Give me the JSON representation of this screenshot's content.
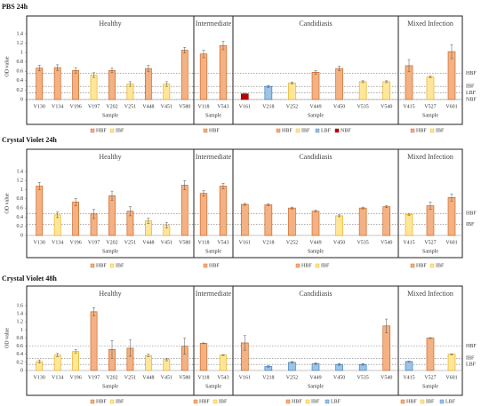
{
  "chart_data": [
    {
      "type": "bar",
      "title": "PBS 24h",
      "ylabel": "OD value",
      "xlabel": "Sample",
      "ylim": [
        0,
        1.4
      ],
      "yticks": [
        0,
        0.2,
        0.4,
        0.6,
        0.8,
        1,
        1.2,
        1.4
      ],
      "thresholds": [
        {
          "label": "HBF",
          "value": 0.56
        },
        {
          "label": "IBF",
          "value": 0.28
        },
        {
          "label": "LBF",
          "value": 0.14
        },
        {
          "label": "NBF",
          "value": 0
        }
      ],
      "groups": [
        {
          "name": "Healthy",
          "categories": [
            "V130",
            "V134",
            "V196",
            "V197",
            "V202",
            "V251",
            "V448",
            "V451",
            "V580"
          ],
          "series": [
            {
              "name": "HBF",
              "color": "#f4b183",
              "edge_color": "#c55a11",
              "values": [
                0.67,
                0.68,
                0.62,
                null,
                0.62,
                null,
                0.66,
                null,
                1.05
              ],
              "errors": [
                0.06,
                0.06,
                0.06,
                null,
                0.05,
                null,
                0.07,
                null,
                0.06
              ]
            },
            {
              "name": "IBF",
              "color": "#ffe699",
              "edge_color": "#e6a800",
              "values": [
                null,
                null,
                null,
                0.52,
                null,
                0.33,
                null,
                0.33,
                null
              ],
              "errors": [
                null,
                null,
                null,
                0.05,
                null,
                0.05,
                null,
                0.05,
                null
              ]
            }
          ]
        },
        {
          "name": "Intermediate",
          "categories": [
            "V118",
            "V543"
          ],
          "series": [
            {
              "name": "HBF",
              "color": "#f4b183",
              "edge_color": "#c55a11",
              "values": [
                0.97,
                1.15
              ],
              "errors": [
                0.08,
                0.09
              ]
            }
          ]
        },
        {
          "name": "Candidiasis",
          "categories": [
            "V161",
            "V218",
            "V252",
            "V449",
            "V450",
            "V535",
            "V540"
          ],
          "series": [
            {
              "name": "HBF",
              "color": "#f4b183",
              "edge_color": "#c55a11",
              "values": [
                null,
                null,
                null,
                0.58,
                0.66,
                null,
                null
              ],
              "errors": [
                null,
                null,
                null,
                0.04,
                0.05,
                null,
                null
              ]
            },
            {
              "name": "IBF",
              "color": "#ffe699",
              "edge_color": "#e6a800",
              "values": [
                null,
                null,
                0.35,
                null,
                null,
                0.38,
                0.38
              ],
              "errors": [
                null,
                null,
                0.02,
                null,
                null,
                0.02,
                0.02
              ]
            },
            {
              "name": "LBF",
              "color": "#9dc3e6",
              "edge_color": "#2e75b6",
              "values": [
                null,
                0.28,
                null,
                null,
                null,
                null,
                null
              ],
              "errors": [
                null,
                0.02,
                null,
                null,
                null,
                null,
                null
              ]
            },
            {
              "name": "NBF",
              "color": "#c00000",
              "edge_color": "#7f0000",
              "values": [
                0.12,
                null,
                null,
                null,
                null,
                null,
                null
              ],
              "errors": [
                0.01,
                null,
                null,
                null,
                null,
                null,
                null
              ]
            }
          ]
        },
        {
          "name": "Mixed Infection",
          "categories": [
            "V415",
            "V527",
            "V601"
          ],
          "series": [
            {
              "name": "HBF",
              "color": "#f4b183",
              "edge_color": "#c55a11",
              "values": [
                0.72,
                null,
                1.02
              ],
              "errors": [
                0.13,
                null,
                0.15
              ]
            },
            {
              "name": "IBF",
              "color": "#ffe699",
              "edge_color": "#e6a800",
              "values": [
                null,
                0.48,
                null
              ],
              "errors": [
                null,
                0.02,
                null
              ]
            }
          ]
        }
      ]
    },
    {
      "type": "bar",
      "title": "Crystal Violet 24h",
      "ylabel": "OD value",
      "xlabel": "Sample",
      "ylim": [
        0,
        1.4
      ],
      "yticks": [
        0,
        0.2,
        0.4,
        0.6,
        0.8,
        1,
        1.2,
        1.4
      ],
      "thresholds": [
        {
          "label": "HBF",
          "value": 0.48
        },
        {
          "label": "IBF",
          "value": 0.24
        }
      ],
      "groups": [
        {
          "name": "Healthy",
          "categories": [
            "V130",
            "V134",
            "V196",
            "V197",
            "V202",
            "V251",
            "V448",
            "V451",
            "V580"
          ],
          "series": [
            {
              "name": "HBF",
              "color": "#f4b183",
              "edge_color": "#c55a11",
              "values": [
                1.08,
                null,
                0.73,
                0.47,
                0.87,
                0.53,
                null,
                null,
                1.1
              ],
              "errors": [
                0.08,
                null,
                0.08,
                0.1,
                0.1,
                0.1,
                null,
                null,
                0.1
              ]
            },
            {
              "name": "IBF",
              "color": "#ffe699",
              "edge_color": "#e6a800",
              "values": [
                null,
                0.45,
                null,
                null,
                null,
                null,
                0.32,
                0.22,
                null
              ],
              "errors": [
                null,
                0.06,
                null,
                null,
                null,
                null,
                0.06,
                0.06,
                null
              ]
            }
          ]
        },
        {
          "name": "Intermediate",
          "categories": [
            "V118",
            "V543"
          ],
          "series": [
            {
              "name": "HBF",
              "color": "#f4b183",
              "edge_color": "#c55a11",
              "values": [
                0.92,
                1.08
              ],
              "errors": [
                0.06,
                0.06
              ]
            }
          ]
        },
        {
          "name": "Candidiasis",
          "categories": [
            "V161",
            "V218",
            "V252",
            "V449",
            "V450",
            "V535",
            "V540"
          ],
          "series": [
            {
              "name": "HBF",
              "color": "#f4b183",
              "edge_color": "#c55a11",
              "values": [
                0.68,
                0.67,
                0.6,
                0.53,
                null,
                0.6,
                0.63
              ],
              "errors": [
                0.02,
                0.02,
                0.02,
                0.02,
                null,
                0.02,
                0.02
              ]
            },
            {
              "name": "IBF",
              "color": "#ffe699",
              "edge_color": "#e6a800",
              "values": [
                null,
                null,
                null,
                null,
                0.43,
                null,
                null
              ],
              "errors": [
                null,
                null,
                null,
                null,
                0.02,
                null,
                null
              ]
            }
          ]
        },
        {
          "name": "Mixed Infection",
          "categories": [
            "V415",
            "V527",
            "V601"
          ],
          "series": [
            {
              "name": "HBF",
              "color": "#f4b183",
              "edge_color": "#c55a11",
              "values": [
                null,
                0.65,
                0.83
              ],
              "errors": [
                null,
                0.08,
                0.08
              ]
            },
            {
              "name": "IBF",
              "color": "#ffe699",
              "edge_color": "#e6a800",
              "values": [
                0.46,
                null,
                null
              ],
              "errors": [
                0.02,
                null,
                null
              ]
            }
          ]
        }
      ]
    },
    {
      "type": "bar",
      "title": "Crystal Violet 48h",
      "ylabel": "OD value",
      "xlabel": "Sample",
      "ylim": [
        0,
        1.6
      ],
      "yticks": [
        0,
        0.2,
        0.4,
        0.6,
        0.8,
        1,
        1.2,
        1.4,
        1.6
      ],
      "thresholds": [
        {
          "label": "HBF",
          "value": 0.6
        },
        {
          "label": "IBF",
          "value": 0.3
        },
        {
          "label": "LBF",
          "value": 0.15
        }
      ],
      "groups": [
        {
          "name": "Healthy",
          "categories": [
            "V130",
            "V134",
            "V196",
            "V197",
            "V202",
            "V251",
            "V448",
            "V451",
            "V580"
          ],
          "series": [
            {
              "name": "HBF",
              "color": "#f4b183",
              "edge_color": "#c55a11",
              "values": [
                null,
                null,
                null,
                1.45,
                0.52,
                0.55,
                null,
                null,
                0.6
              ],
              "errors": [
                null,
                null,
                null,
                0.1,
                0.22,
                0.2,
                null,
                null,
                0.2
              ]
            },
            {
              "name": "IBF",
              "color": "#ffe699",
              "edge_color": "#e6a800",
              "values": [
                0.22,
                0.38,
                0.47,
                null,
                null,
                null,
                0.37,
                0.27,
                null
              ],
              "errors": [
                0.04,
                0.04,
                0.04,
                null,
                null,
                null,
                0.03,
                0.03,
                null
              ]
            }
          ]
        },
        {
          "name": "Intermediate",
          "categories": [
            "V118",
            "V543"
          ],
          "series": [
            {
              "name": "HBF",
              "color": "#f4b183",
              "edge_color": "#c55a11",
              "values": [
                0.67,
                null
              ],
              "errors": [
                0.01,
                null
              ]
            },
            {
              "name": "IBF",
              "color": "#ffe699",
              "edge_color": "#e6a800",
              "values": [
                null,
                0.38
              ],
              "errors": [
                null,
                0.01
              ]
            }
          ]
        },
        {
          "name": "Candidiasis",
          "categories": [
            "V161",
            "V218",
            "V252",
            "V449",
            "V450",
            "V535",
            "V540"
          ],
          "series": [
            {
              "name": "HBF",
              "color": "#f4b183",
              "edge_color": "#c55a11",
              "values": [
                0.68,
                null,
                null,
                null,
                null,
                null,
                1.1
              ],
              "errors": [
                0.18,
                null,
                null,
                null,
                null,
                null,
                0.17
              ]
            },
            {
              "name": "IBF",
              "color": "#ffe699",
              "edge_color": "#e6a800",
              "values": [
                null,
                null,
                null,
                null,
                null,
                null,
                null
              ],
              "errors": [
                null,
                null,
                null,
                null,
                null,
                null,
                null
              ]
            },
            {
              "name": "LBF",
              "color": "#9dc3e6",
              "edge_color": "#2e75b6",
              "values": [
                null,
                0.1,
                0.2,
                0.17,
                0.15,
                0.15,
                null
              ],
              "errors": [
                null,
                0.02,
                0.02,
                0.02,
                0.02,
                0.02,
                null
              ]
            }
          ]
        },
        {
          "name": "Mixed Infection",
          "categories": [
            "V415",
            "V527",
            "V601"
          ],
          "series": [
            {
              "name": "HBF",
              "color": "#f4b183",
              "edge_color": "#c55a11",
              "values": [
                null,
                0.8,
                null
              ],
              "errors": [
                null,
                0.01,
                null
              ]
            },
            {
              "name": "IBF",
              "color": "#ffe699",
              "edge_color": "#e6a800",
              "values": [
                null,
                null,
                0.4
              ],
              "errors": [
                null,
                null,
                0.01
              ]
            },
            {
              "name": "LBF",
              "color": "#9dc3e6",
              "edge_color": "#2e75b6",
              "values": [
                0.22,
                null,
                null
              ],
              "errors": [
                0.01,
                null,
                null
              ]
            }
          ]
        }
      ]
    }
  ]
}
